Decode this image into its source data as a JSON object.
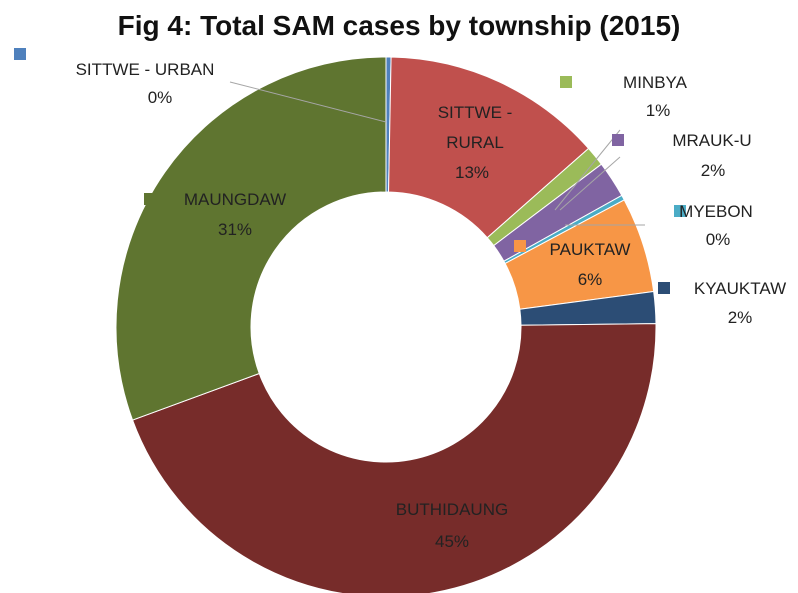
{
  "chart_data": {
    "type": "donut",
    "title": "Fig 4: Total SAM cases by township (2015)",
    "categories": [
      "SITTWE - URBAN",
      "SITTWE - RURAL",
      "MINBYA",
      "MRAUK-U",
      "MYEBON",
      "PAUKTAW",
      "KYAUKTAW",
      "BUTHIDAUNG",
      "MAUNGDAW"
    ],
    "values": [
      0.3,
      13.2,
      1.2,
      2.2,
      0.3,
      5.7,
      1.9,
      44.6,
      30.6
    ],
    "value_labels": [
      "0%",
      "13%",
      "1%",
      "2%",
      "0%",
      "6%",
      "2%",
      "45%",
      "31%"
    ],
    "colors": [
      "#4f81bd",
      "#c0504d",
      "#9bbb59",
      "#8064a2",
      "#4bacc6",
      "#f79646",
      "#2c4d75",
      "#772c2a",
      "#5f7530"
    ]
  }
}
